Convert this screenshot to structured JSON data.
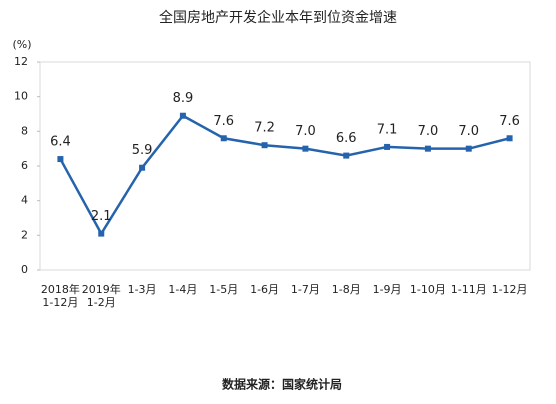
{
  "chart_data": {
    "type": "line",
    "title": "全国房地产开发企业本年到位资金增速",
    "y_label": "(%)",
    "source": "数据来源：国家统计局",
    "categories": [
      "2018年\n1-12月",
      "2019年\n1-2月",
      "1-3月",
      "1-4月",
      "1-5月",
      "1-6月",
      "1-7月",
      "1-8月",
      "1-9月",
      "1-10月",
      "1-11月",
      "1-12月"
    ],
    "values": [
      6.4,
      2.1,
      5.9,
      8.9,
      7.6,
      7.2,
      7.0,
      6.6,
      7.1,
      7.0,
      7.0,
      7.6
    ],
    "value_labels": [
      "6.4",
      "2.1",
      "5.9",
      "8.9",
      "7.6",
      "7.2",
      "7.0",
      "6.6",
      "7.1",
      "7.0",
      "7.0",
      "7.6"
    ],
    "color": "#2563ad",
    "ylim": [
      0,
      12
    ],
    "yticks": [
      0,
      2,
      4,
      6,
      8,
      10,
      12
    ],
    "grid": false
  }
}
